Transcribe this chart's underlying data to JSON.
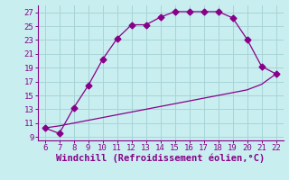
{
  "upper_x": [
    6,
    7,
    8,
    9,
    10,
    11,
    12,
    13,
    14,
    15,
    16,
    17,
    18,
    19,
    20,
    21,
    22
  ],
  "upper_y": [
    10.3,
    9.5,
    13.2,
    16.4,
    20.2,
    23.2,
    25.2,
    25.2,
    26.3,
    27.1,
    27.1,
    27.1,
    27.1,
    26.2,
    23.1,
    19.2,
    18.1
  ],
  "lower_x": [
    6,
    7,
    8,
    9,
    10,
    11,
    12,
    13,
    14,
    15,
    16,
    17,
    18,
    19,
    20,
    21,
    22
  ],
  "lower_y": [
    10.3,
    10.6,
    11.0,
    11.4,
    11.8,
    12.2,
    12.6,
    13.0,
    13.4,
    13.8,
    14.2,
    14.6,
    15.0,
    15.4,
    15.8,
    16.6,
    18.1
  ],
  "line_color": "#880088",
  "marker": "D",
  "marker_size": 3.5,
  "bg_color": "#c8eef0",
  "grid_color": "#a8d4d8",
  "xlabel": "Windchill (Refroidissement éolien,°C)",
  "xlabel_color": "#880088",
  "xlim": [
    5.5,
    22.5
  ],
  "ylim": [
    8.5,
    28.0
  ],
  "xticks": [
    6,
    7,
    8,
    9,
    10,
    11,
    12,
    13,
    14,
    15,
    16,
    17,
    18,
    19,
    20,
    21,
    22
  ],
  "yticks": [
    9,
    11,
    13,
    15,
    17,
    19,
    21,
    23,
    25,
    27
  ],
  "tick_fontsize": 6.5,
  "xlabel_fontsize": 7.5
}
